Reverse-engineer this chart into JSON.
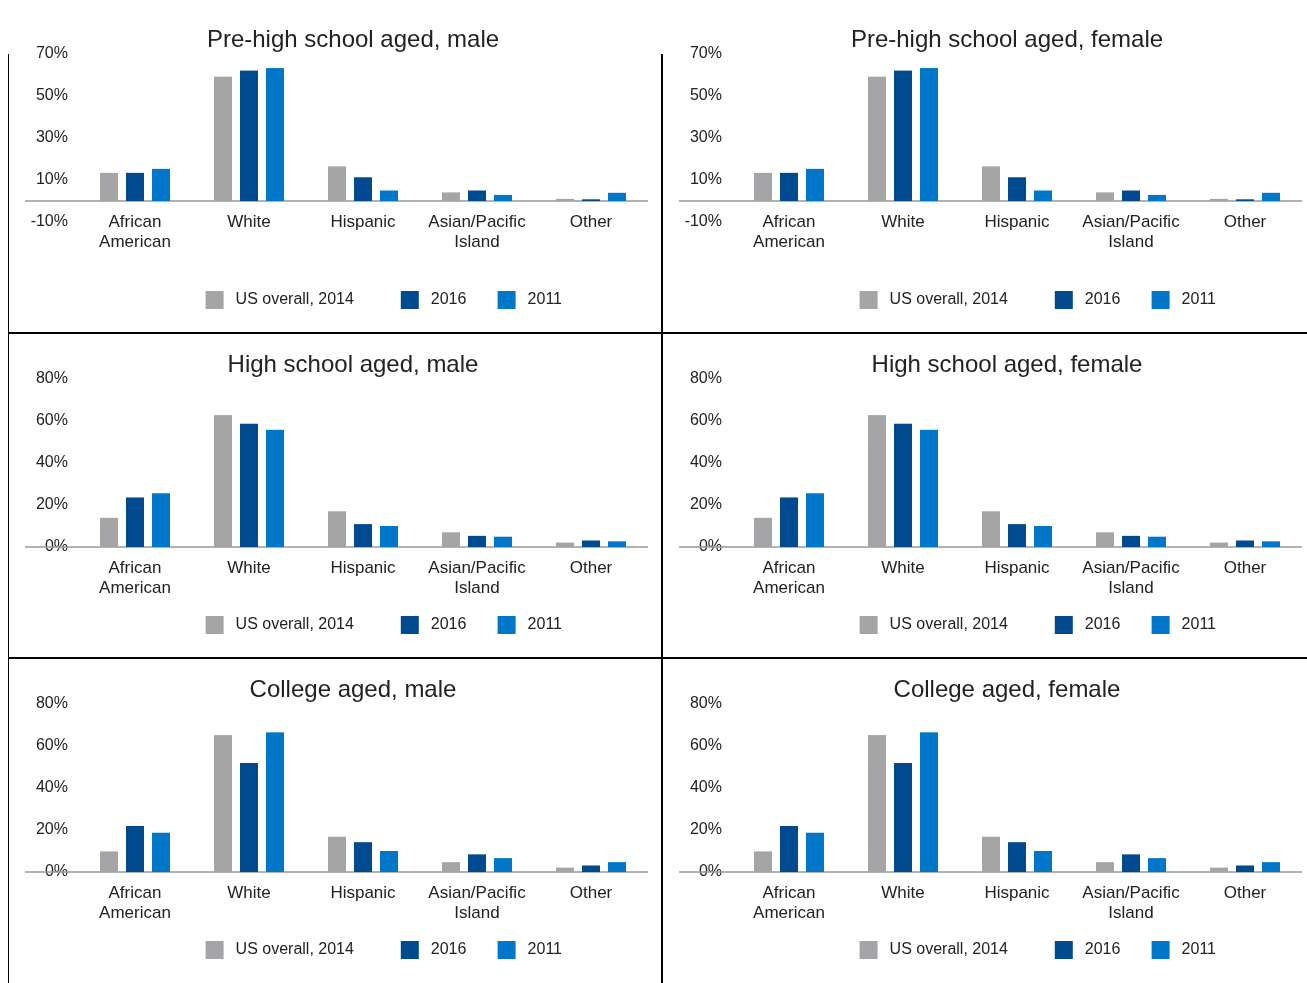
{
  "chart_data": [
    {
      "type": "bar",
      "title": "Pre-high school aged, male",
      "categories": [
        "African American",
        "White",
        "Hispanic",
        "Asian/Pacific Island",
        "Other"
      ],
      "ylim": [
        -10,
        70
      ],
      "yticks": [
        {
          "value": -10,
          "label": "-10%"
        },
        {
          "value": 10,
          "label": "10%"
        },
        {
          "value": 30,
          "label": "30%"
        },
        {
          "value": 50,
          "label": "50%"
        },
        {
          "value": 70,
          "label": "70%"
        }
      ],
      "legend": "bottom",
      "grid": false,
      "series": [
        {
          "name": "US overall, 2014",
          "color": "#a5a5a7",
          "values": [
            13.4,
            59.2,
            16.5,
            4.1,
            1.0
          ]
        },
        {
          "name": "2016",
          "color": "#004a8f",
          "values": [
            13.4,
            62.1,
            11.3,
            5.0,
            0.8
          ]
        },
        {
          "name": "2011",
          "color": "#0077c8",
          "values": [
            15.3,
            63.3,
            5.0,
            2.9,
            3.9
          ]
        }
      ]
    },
    {
      "type": "bar",
      "title": "Pre-high school aged, female",
      "categories": [
        "African American",
        "White",
        "Hispanic",
        "Asian/Pacific Island",
        "Other"
      ],
      "ylim": [
        -10,
        70
      ],
      "yticks": [
        {
          "value": -10,
          "label": "-10%"
        },
        {
          "value": 10,
          "label": "10%"
        },
        {
          "value": 30,
          "label": "30%"
        },
        {
          "value": 50,
          "label": "50%"
        },
        {
          "value": 70,
          "label": "70%"
        }
      ],
      "legend": "bottom",
      "grid": false,
      "series": [
        {
          "name": "US overall, 2014",
          "color": "#a5a5a7",
          "values": [
            13.4,
            59.2,
            16.5,
            4.1,
            1.0
          ]
        },
        {
          "name": "2016",
          "color": "#004a8f",
          "values": [
            13.4,
            62.1,
            11.3,
            5.0,
            0.8
          ]
        },
        {
          "name": "2011",
          "color": "#0077c8",
          "values": [
            15.3,
            63.3,
            5.0,
            2.9,
            3.9
          ]
        }
      ]
    },
    {
      "type": "bar",
      "title": "High school aged, male",
      "categories": [
        "African American",
        "White",
        "Hispanic",
        "Asian/Pacific Island",
        "Other"
      ],
      "ylim": [
        0,
        80
      ],
      "yticks": [
        {
          "value": 0,
          "label": "0%"
        },
        {
          "value": 20,
          "label": "20%"
        },
        {
          "value": 40,
          "label": "40%"
        },
        {
          "value": 60,
          "label": "60%"
        },
        {
          "value": 80,
          "label": "80%"
        }
      ],
      "legend": "bottom",
      "grid": false,
      "series": [
        {
          "name": "US overall, 2014",
          "color": "#a5a5a7",
          "values": [
            13.9,
            62.8,
            17.0,
            7.0,
            2.1
          ]
        },
        {
          "name": "2016",
          "color": "#004a8f",
          "values": [
            23.6,
            58.7,
            10.9,
            5.3,
            3.1
          ]
        },
        {
          "name": "2011",
          "color": "#0077c8",
          "values": [
            25.6,
            55.8,
            10.0,
            4.9,
            2.7
          ]
        }
      ]
    },
    {
      "type": "bar",
      "title": "High school aged, female",
      "categories": [
        "African American",
        "White",
        "Hispanic",
        "Asian/Pacific Island",
        "Other"
      ],
      "ylim": [
        0,
        80
      ],
      "yticks": [
        {
          "value": 0,
          "label": "0%"
        },
        {
          "value": 20,
          "label": "20%"
        },
        {
          "value": 40,
          "label": "40%"
        },
        {
          "value": 60,
          "label": "60%"
        },
        {
          "value": 80,
          "label": "80%"
        }
      ],
      "legend": "bottom",
      "grid": false,
      "series": [
        {
          "name": "US overall, 2014",
          "color": "#a5a5a7",
          "values": [
            13.9,
            62.8,
            17.0,
            7.0,
            2.1
          ]
        },
        {
          "name": "2016",
          "color": "#004a8f",
          "values": [
            23.6,
            58.7,
            10.9,
            5.3,
            3.1
          ]
        },
        {
          "name": "2011",
          "color": "#0077c8",
          "values": [
            25.6,
            55.8,
            10.0,
            4.9,
            2.7
          ]
        }
      ]
    },
    {
      "type": "bar",
      "title": "College aged, male",
      "categories": [
        "African American",
        "White",
        "Hispanic",
        "Asian/Pacific Island",
        "Other"
      ],
      "ylim": [
        0,
        80
      ],
      "yticks": [
        {
          "value": 0,
          "label": "0%"
        },
        {
          "value": 20,
          "label": "20%"
        },
        {
          "value": 40,
          "label": "40%"
        },
        {
          "value": 60,
          "label": "60%"
        },
        {
          "value": 80,
          "label": "80%"
        }
      ],
      "legend": "bottom",
      "grid": false,
      "series": [
        {
          "name": "US overall, 2014",
          "color": "#a5a5a7",
          "values": [
            9.8,
            65.2,
            16.8,
            4.7,
            2.1
          ]
        },
        {
          "name": "2016",
          "color": "#004a8f",
          "values": [
            21.9,
            51.9,
            14.2,
            8.4,
            3.1
          ]
        },
        {
          "name": "2011",
          "color": "#0077c8",
          "values": [
            18.7,
            66.5,
            10.0,
            6.6,
            4.7
          ]
        }
      ]
    },
    {
      "type": "bar",
      "title": "College aged, female",
      "categories": [
        "African American",
        "White",
        "Hispanic",
        "Asian/Pacific Island",
        "Other"
      ],
      "ylim": [
        0,
        80
      ],
      "yticks": [
        {
          "value": 0,
          "label": "0%"
        },
        {
          "value": 20,
          "label": "20%"
        },
        {
          "value": 40,
          "label": "40%"
        },
        {
          "value": 60,
          "label": "60%"
        },
        {
          "value": 80,
          "label": "80%"
        }
      ],
      "legend": "bottom",
      "grid": false,
      "series": [
        {
          "name": "US overall, 2014",
          "color": "#a5a5a7",
          "values": [
            9.8,
            65.2,
            16.8,
            4.7,
            2.1
          ]
        },
        {
          "name": "2016",
          "color": "#004a8f",
          "values": [
            21.9,
            51.9,
            14.2,
            8.4,
            3.1
          ]
        },
        {
          "name": "2011",
          "color": "#0077c8",
          "values": [
            18.7,
            66.5,
            10.0,
            6.6,
            4.7
          ]
        }
      ]
    }
  ]
}
